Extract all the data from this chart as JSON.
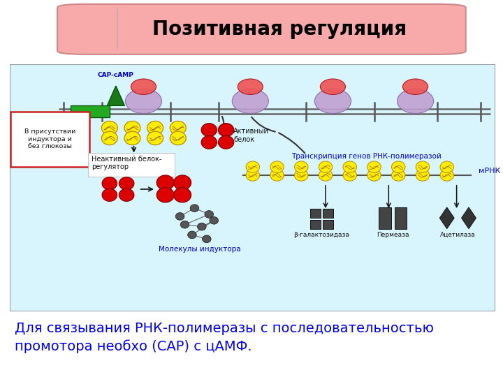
{
  "title": "Позитивная регуляция",
  "title_fontsize": 20,
  "title_fontweight": "bold",
  "page_bg_color": "#FFFFFF",
  "diagram_bg_color": "#D8F4FC",
  "diagram_border_color": "#888888",
  "caption_text": "Для связывания РНК-полимеразы с последовательностью\nпромотора необхо (САР) с цАМФ.",
  "caption_color": "#0000EE",
  "caption_fontsize": 14,
  "label_inactive": "Неактивный белок-\nрегулятор",
  "label_active": "Активный\nбелок",
  "label_inductor": "Молекулы индуктора",
  "label_transcription": "Транскрипция генов РНК-полимеразой",
  "label_mrna": "мРНК",
  "label_cap": "CAP-сАМР",
  "label_presence": "В присутствии\nиндуктора и\nбез глюкозы",
  "label_bgal": "β-галактозидаза",
  "label_perm": "Пермеаза",
  "label_acet": "Ацетилаза",
  "label_color_blue": "#0000CC",
  "label_color_black": "#111111",
  "green_box_color": "#22AA22",
  "red_circle_color": "#DD0000",
  "yellow_circle_color": "#FFEE00",
  "pink_blob_color": "#FF8888",
  "purple_blob_color": "#CC99CC",
  "dark_shape_color": "#333333",
  "title_bg_color": "#F8AAAA",
  "title_edge_color": "#CC8888"
}
